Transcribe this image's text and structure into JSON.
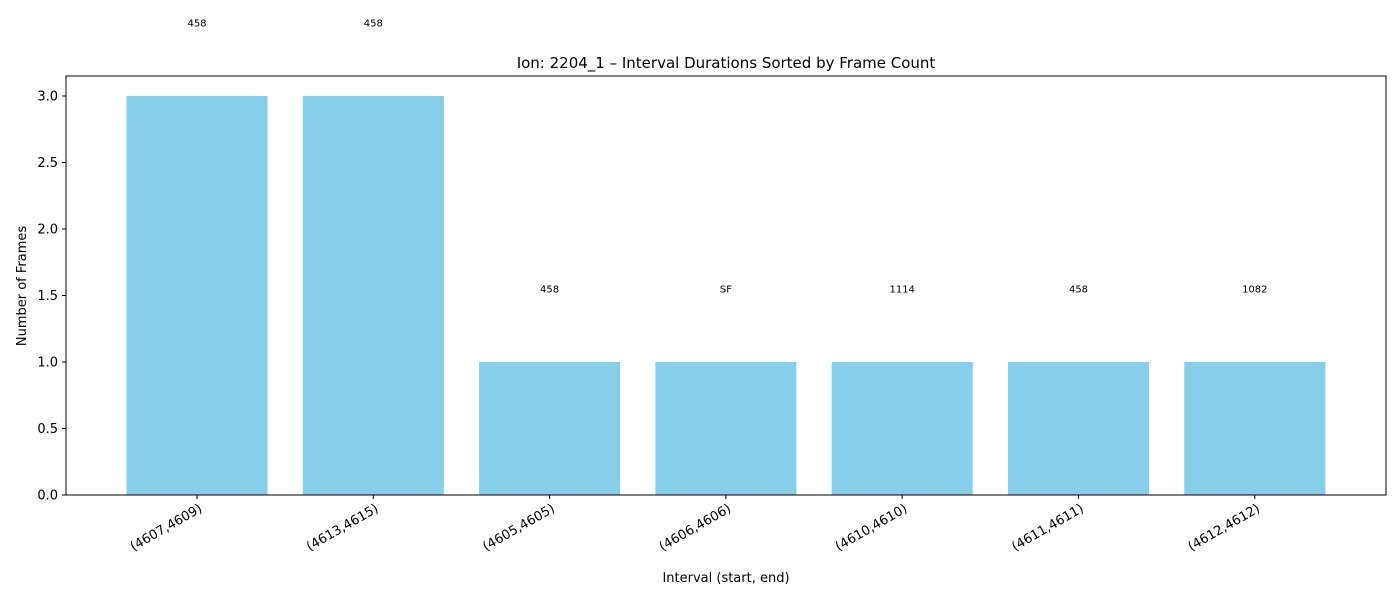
{
  "chart_data": {
    "type": "bar",
    "title": "Ion: 2204_1 – Interval Durations Sorted by Frame Count",
    "xlabel": "Interval (start, end)",
    "ylabel": "Number of Frames",
    "categories": [
      "(4607,4609)",
      "(4613,4615)",
      "(4605,4605)",
      "(4606,4606)",
      "(4610,4610)",
      "(4611,4611)",
      "(4612,4612)"
    ],
    "values": [
      3,
      3,
      1,
      1,
      1,
      1,
      1
    ],
    "bar_labels": [
      "458",
      "458",
      "458",
      "SF",
      "1114",
      "458",
      "1082"
    ],
    "ylim": [
      0,
      3.15
    ],
    "yticks": [
      0.0,
      0.5,
      1.0,
      1.5,
      2.0,
      2.5,
      3.0
    ],
    "ytick_labels": [
      "0.0",
      "0.5",
      "1.0",
      "1.5",
      "2.0",
      "2.5",
      "3.0"
    ],
    "bar_color": "#87CEEB",
    "grid": false,
    "legend": "none"
  }
}
